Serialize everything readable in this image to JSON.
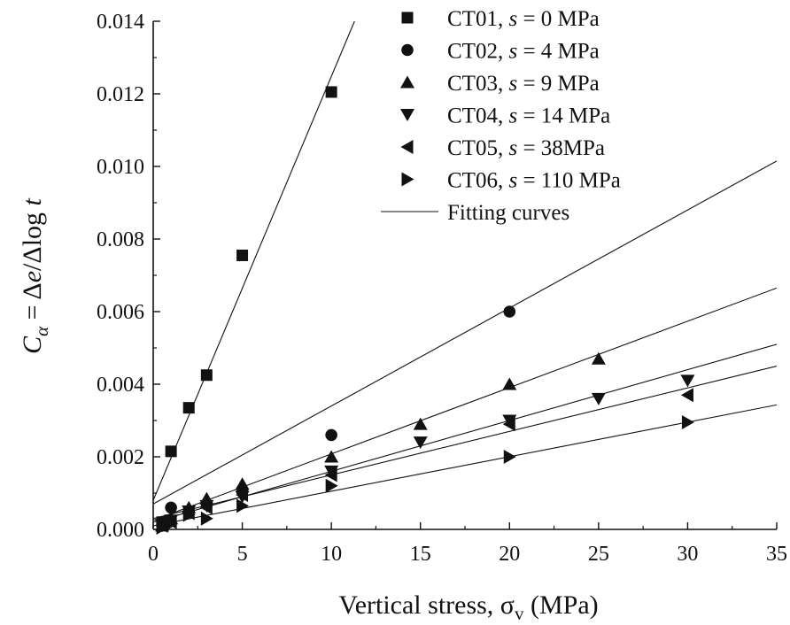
{
  "chart_data": {
    "type": "scatter",
    "xlabel": "Vertical stress, σv (MPa)",
    "xlabel_parts": {
      "main": "Vertical stress, σ",
      "sub": "v",
      "tail": " (MPa)"
    },
    "ylabel": "Cα = Δe/Δlog t",
    "ylabel_parts": {
      "c": "C",
      "sub": "α",
      "eq": " = Δ",
      "e": "e",
      "mid": "/Δlog ",
      "t": "t"
    },
    "xlim": [
      0,
      35
    ],
    "ylim": [
      0,
      0.014
    ],
    "x_ticks": [
      0,
      5,
      10,
      15,
      20,
      25,
      30,
      35
    ],
    "x_tick_labels": [
      "0",
      "5",
      "10",
      "15",
      "20",
      "25",
      "30",
      "35"
    ],
    "y_ticks": [
      0,
      0.002,
      0.004,
      0.006,
      0.008,
      0.01,
      0.012,
      0.014
    ],
    "y_tick_labels": [
      "0.000",
      "0.002",
      "0.004",
      "0.006",
      "0.008",
      "0.010",
      "0.012",
      "0.014"
    ],
    "grid": false,
    "legend_position": "top-right",
    "series": [
      {
        "name": "CT01, s = 0 MPa",
        "label_parts": [
          "CT01, ",
          "s",
          " = 0 MPa"
        ],
        "marker": "square",
        "x": [
          0.5,
          1,
          2,
          3,
          5,
          10
        ],
        "y": [
          0.0002,
          0.00215,
          0.00335,
          0.00425,
          0.00755,
          0.01205
        ]
      },
      {
        "name": "CT02, s = 4 MPa",
        "label_parts": [
          "CT02, ",
          "s",
          " = 4 MPa"
        ],
        "marker": "circle",
        "x": [
          0.5,
          1,
          2,
          3,
          5,
          10,
          20
        ],
        "y": [
          0.00015,
          0.0006,
          0.0005,
          0.0007,
          0.0011,
          0.0026,
          0.006
        ]
      },
      {
        "name": "CT03, s = 9 MPa",
        "label_parts": [
          "CT03, ",
          "s",
          " = 9 MPa"
        ],
        "marker": "triangle-up",
        "x": [
          0.5,
          1,
          2,
          3,
          5,
          10,
          15,
          20,
          25
        ],
        "y": [
          0.0001,
          0.0003,
          0.0006,
          0.00085,
          0.00125,
          0.002,
          0.0029,
          0.004,
          0.0047
        ]
      },
      {
        "name": "CT04, s = 14 MPa",
        "label_parts": [
          "CT04, ",
          "s",
          " = 14 MPa"
        ],
        "marker": "triangle-down",
        "x": [
          0.5,
          1,
          2,
          3,
          5,
          10,
          15,
          20,
          25,
          30
        ],
        "y": [
          0.0001,
          0.00025,
          0.0005,
          0.00065,
          0.0009,
          0.0016,
          0.0024,
          0.003,
          0.0036,
          0.0041
        ]
      },
      {
        "name": "CT05, s = 38MPa",
        "label_parts": [
          "CT05, ",
          "s",
          " = 38MPa"
        ],
        "marker": "triangle-left",
        "x": [
          0.5,
          1,
          2,
          3,
          5,
          10,
          20,
          30
        ],
        "y": [
          0.0001,
          0.0002,
          0.00045,
          0.0006,
          0.00095,
          0.0015,
          0.0029,
          0.0037
        ]
      },
      {
        "name": "CT06, s = 110 MPa",
        "label_parts": [
          "CT06, ",
          "s",
          " = 110 MPa"
        ],
        "marker": "triangle-right",
        "x": [
          0.5,
          1,
          2,
          3,
          5,
          10,
          20,
          30
        ],
        "y": [
          5e-05,
          0.00015,
          0.0004,
          0.0003,
          0.00065,
          0.0012,
          0.002,
          0.00295
        ]
      }
    ],
    "fitting_curves": {
      "name": "Fitting curves",
      "lines": [
        {
          "series": "CT01",
          "x": [
            0,
            11.3
          ],
          "y": [
            0.0008,
            0.014
          ]
        },
        {
          "series": "CT02",
          "x": [
            0,
            35
          ],
          "y": [
            0.0007,
            0.01015
          ]
        },
        {
          "series": "CT03",
          "x": [
            0,
            35
          ],
          "y": [
            0.00025,
            0.00665
          ]
        },
        {
          "series": "CT04",
          "x": [
            0,
            35
          ],
          "y": [
            0.0002,
            0.0051
          ]
        },
        {
          "series": "CT05",
          "x": [
            0,
            35
          ],
          "y": [
            0.0003,
            0.0045
          ]
        },
        {
          "series": "CT06",
          "x": [
            0,
            35
          ],
          "y": [
            0.0001,
            0.00343
          ]
        }
      ]
    }
  }
}
